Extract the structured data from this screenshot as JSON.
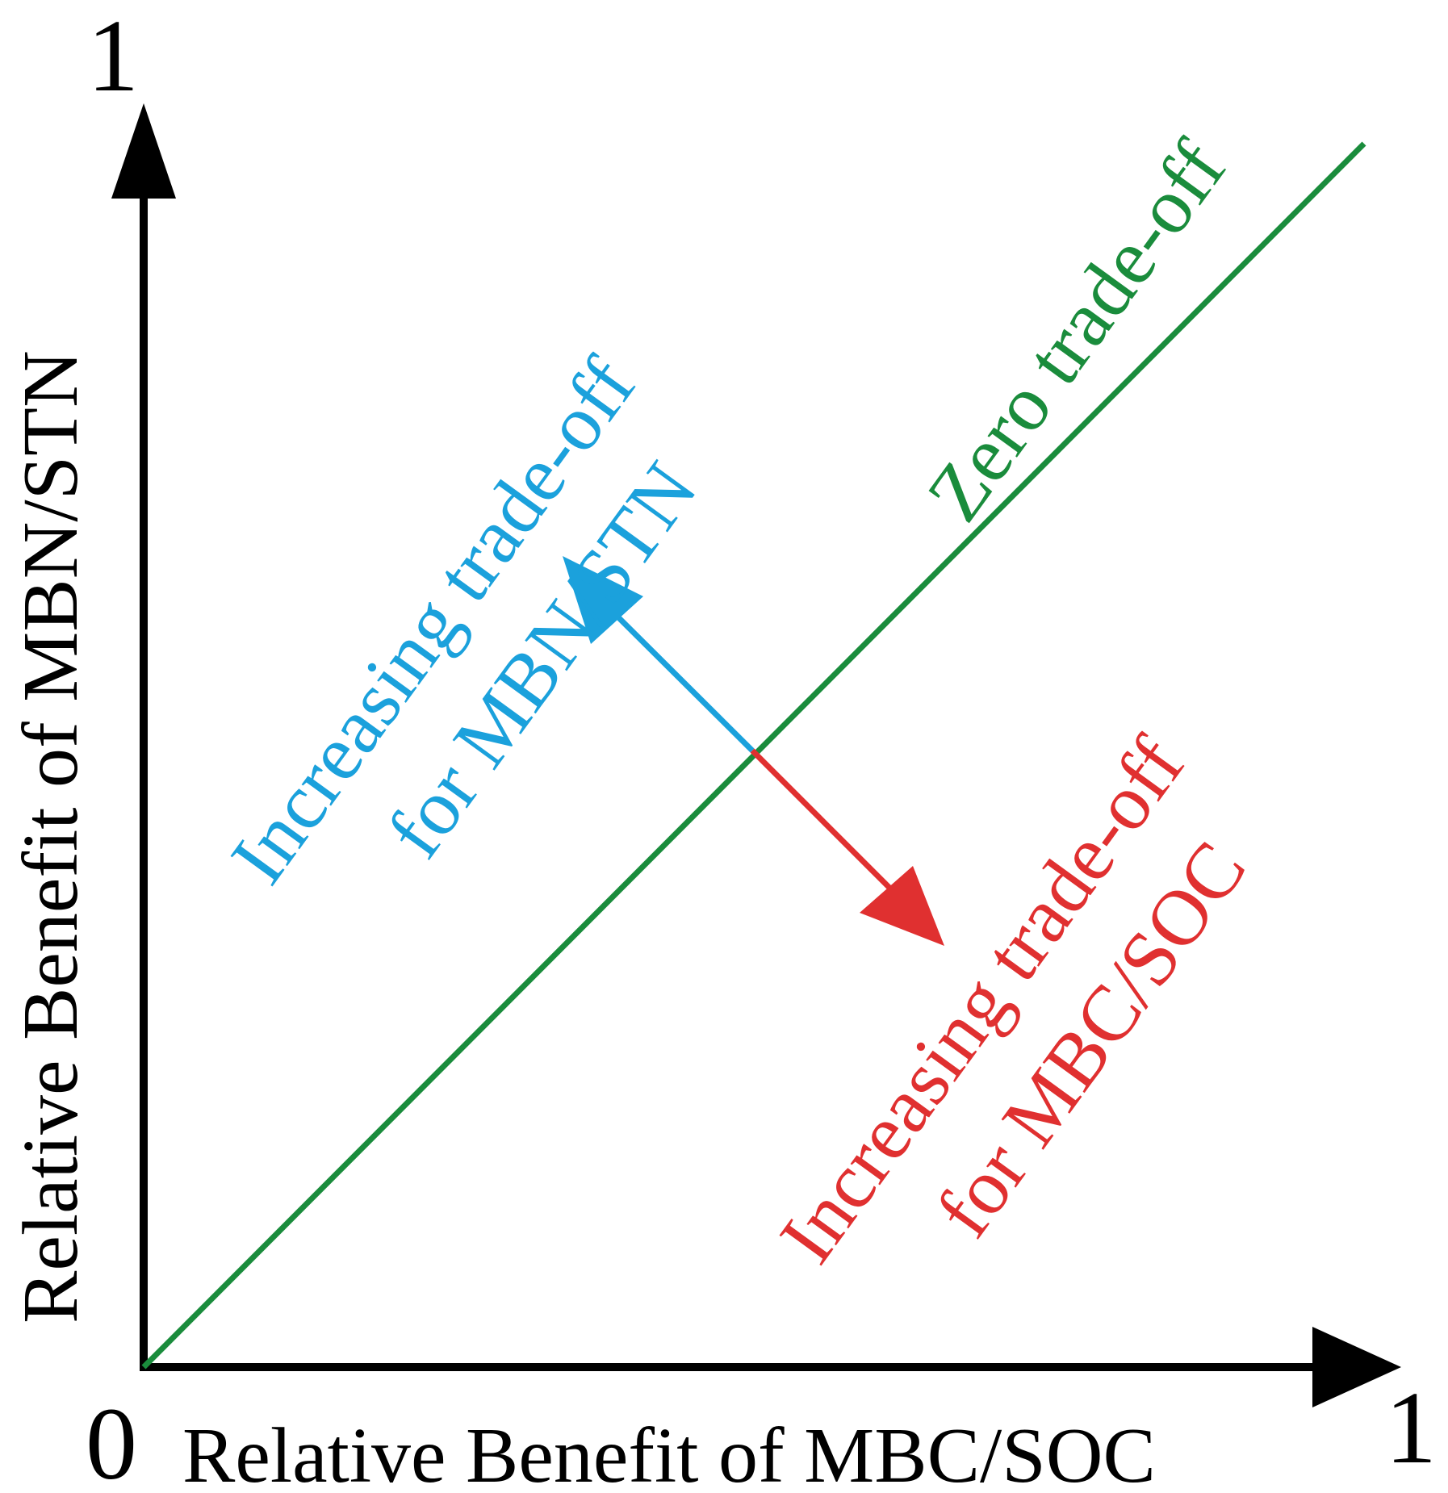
{
  "axes": {
    "origin_label": "0",
    "x_max_label": "1",
    "y_max_label": "1",
    "x_label": "Relative Benefit of MBC/SOC",
    "y_label": "Relative Benefit of MBN/STN"
  },
  "zero_line": {
    "label": "Zero trade-off"
  },
  "mbn_tradeoff": {
    "line1": "Increasing trade-off",
    "line2": "for MBN/STN"
  },
  "mbc_tradeoff": {
    "line1": "Increasing trade-off",
    "line2": "for MBC/SOC"
  },
  "colors": {
    "axis": "#000000",
    "zero_line": "#1a8c3c",
    "mbn": "#1ba1dc",
    "mbc": "#e03030"
  }
}
